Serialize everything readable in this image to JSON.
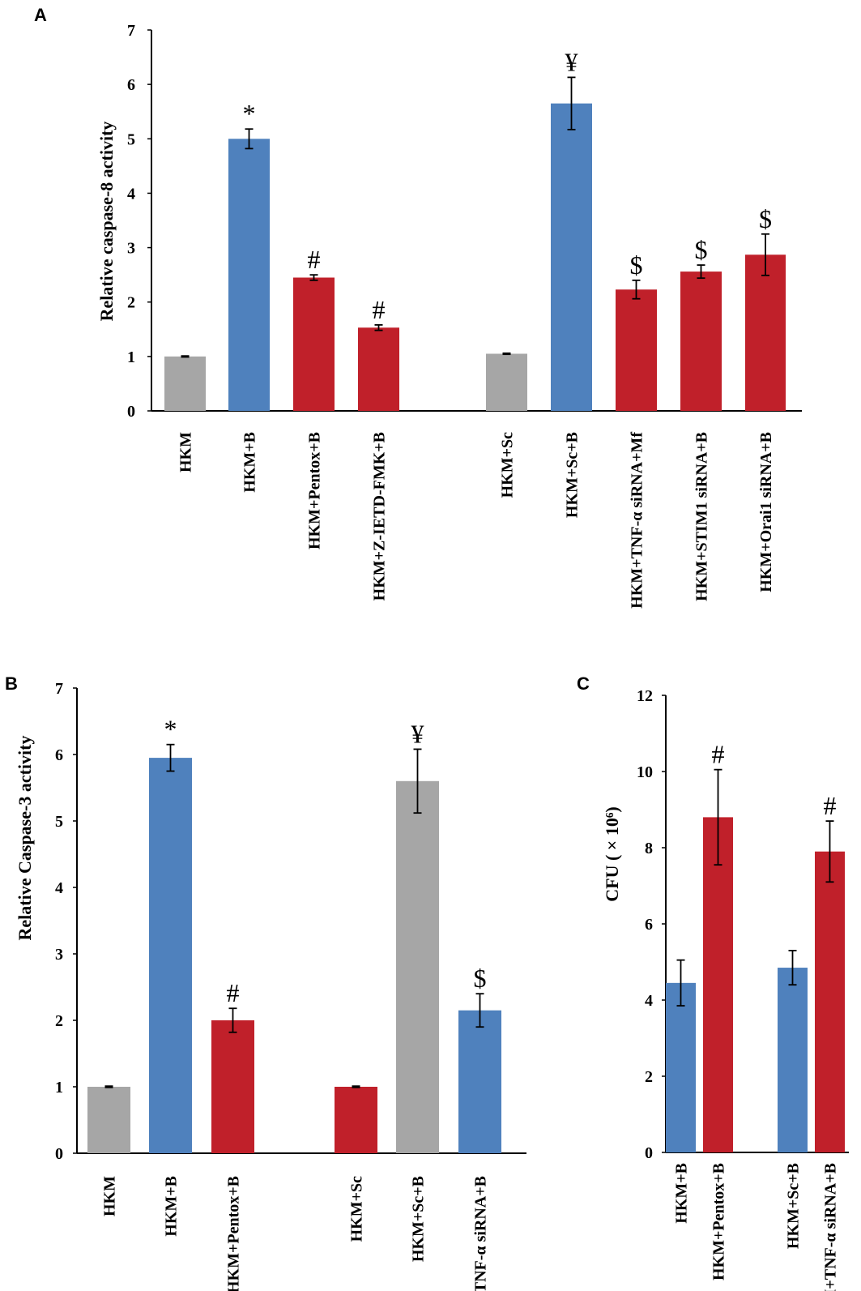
{
  "chart_data": [
    {
      "panel": "A",
      "type": "bar",
      "ylabel": "Relative caspase-8 activity",
      "ylim": [
        0,
        7
      ],
      "yticks": [
        "0",
        "1",
        "2",
        "3",
        "4",
        "5",
        "6",
        "7"
      ],
      "categories": [
        "HKM",
        "HKM+B",
        "HKM+Pentox+B",
        "HKM+Z-IETD-FMK+B",
        "HKM+Sc",
        "HKM+Sc+B",
        "HKM+TNF-α siRNA+Mf",
        "HKM+STIM1 siRNA+B",
        "HKM+Orai1 siRNA+B"
      ],
      "values": [
        1.0,
        5.0,
        2.45,
        1.53,
        1.05,
        5.65,
        2.23,
        2.56,
        2.87
      ],
      "errors": [
        0.01,
        0.18,
        0.05,
        0.05,
        0.01,
        0.48,
        0.17,
        0.12,
        0.38
      ],
      "colors": [
        "#a6a6a6",
        "#4f81bd",
        "#c0202a",
        "#c0202a",
        "#a6a6a6",
        "#4f81bd",
        "#c0202a",
        "#c0202a",
        "#c0202a"
      ],
      "annotations": [
        "",
        "*",
        "#",
        "#",
        "",
        "¥",
        "$",
        "$",
        "$"
      ]
    },
    {
      "panel": "B",
      "type": "bar",
      "ylabel": "Relative Caspase-3 activity",
      "ylim": [
        0,
        7
      ],
      "yticks": [
        "0",
        "1",
        "2",
        "3",
        "4",
        "5",
        "6",
        "7"
      ],
      "categories": [
        "HKM",
        "HKM+B",
        "HKM+Pentox+B",
        "HKM+Sc",
        "HKM+Sc+B",
        "HKM+TNF-α siRNA+B"
      ],
      "values": [
        1.0,
        5.95,
        2.0,
        1.0,
        5.6,
        2.15
      ],
      "errors": [
        0.01,
        0.2,
        0.18,
        0.01,
        0.48,
        0.25
      ],
      "colors": [
        "#a6a6a6",
        "#4f81bd",
        "#c0202a",
        "#c0202a",
        "#a6a6a6",
        "#4f81bd"
      ],
      "annotations": [
        "",
        "*",
        "#",
        "",
        "¥",
        "$"
      ]
    },
    {
      "panel": "C",
      "type": "bar",
      "ylabel": "CFU ( × 10⁶)",
      "ylim": [
        0,
        12
      ],
      "yticks": [
        "0",
        "2",
        "4",
        "6",
        "8",
        "10",
        "12"
      ],
      "categories": [
        "HKM+B",
        "HKM+Pentox+B",
        "HKM+Sc+B",
        "HKM+TNF-α siRNA+B"
      ],
      "values": [
        4.45,
        8.8,
        4.85,
        7.9
      ],
      "errors": [
        0.6,
        1.25,
        0.45,
        0.8
      ],
      "colors": [
        "#4f81bd",
        "#c0202a",
        "#4f81bd",
        "#c0202a"
      ],
      "annotations": [
        "",
        "#",
        "",
        "#"
      ]
    }
  ]
}
